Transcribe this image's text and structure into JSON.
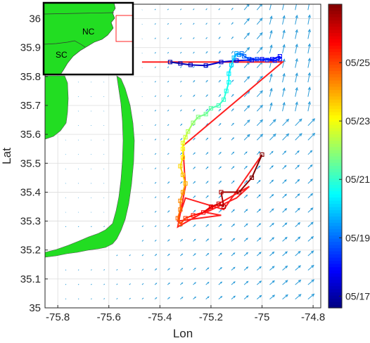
{
  "chart_data": [
    {
      "type": "scatter",
      "subtype": "map-with-quiver-and-track",
      "xlabel": "Lon",
      "ylabel": "Lat",
      "xlim": [
        -75.85,
        -74.77
      ],
      "ylim": [
        35.0,
        36.05
      ],
      "xticks": [
        -75.8,
        -75.6,
        -75.4,
        -75.2,
        -75.0,
        -74.8
      ],
      "xtick_labels": [
        "-75.8",
        "-75.6",
        "-75.4",
        "-75.2",
        "-75",
        "-74.8"
      ],
      "yticks": [
        35.0,
        35.1,
        35.2,
        35.3,
        35.4,
        35.5,
        35.6,
        35.7,
        35.8,
        35.9,
        36.0
      ],
      "ytick_labels": [
        "35",
        "35.1",
        "35.2",
        "35.3",
        "35.4",
        "35.5",
        "35.6",
        "35.7",
        "35.8",
        "35.9",
        "36"
      ],
      "grid": true,
      "land_color": "#22dd22",
      "arrow_color": "#2a9bd8",
      "colorbar": {
        "tick_labels": [
          "05/17",
          "05/19",
          "05/21",
          "05/23",
          "05/25"
        ],
        "tick_values": [
          17,
          19,
          21,
          23,
          25
        ],
        "range": [
          16.6,
          27.0
        ],
        "colormap": "jet"
      },
      "tracks": [
        {
          "color_value": 26.5,
          "points": [
            [
              -75.47,
              35.85
            ],
            [
              -74.92,
              35.85
            ],
            [
              -75.31,
              35.56
            ],
            [
              -75.3,
              35.42
            ],
            [
              -75.33,
              35.28
            ],
            [
              -75.05,
              35.42
            ],
            [
              -75.1,
              35.38
            ],
            [
              -75.22,
              35.33
            ],
            [
              -75.16,
              35.32
            ],
            [
              -75.33,
              35.3
            ],
            [
              -75.3,
              35.38
            ],
            [
              -75.15,
              35.34
            ],
            [
              -75.0,
              35.53
            ]
          ]
        }
      ],
      "series": [
        {
          "points": [
            [
              -75.36,
              35.85,
              17.0
            ],
            [
              -75.32,
              35.845,
              17.1
            ],
            [
              -75.28,
              35.84,
              17.2
            ],
            [
              -75.22,
              35.838,
              17.3
            ],
            [
              -75.16,
              35.85,
              17.4
            ],
            [
              -75.1,
              35.855,
              17.5
            ],
            [
              -75.04,
              35.857,
              17.7
            ],
            [
              -75.0,
              35.86,
              17.8
            ],
            [
              -74.96,
              35.86,
              17.9
            ],
            [
              -74.93,
              35.87,
              18.0
            ],
            [
              -74.93,
              35.86,
              18.1
            ],
            [
              -74.95,
              35.855,
              18.2
            ],
            [
              -74.98,
              35.857,
              18.4
            ],
            [
              -75.02,
              35.86,
              18.5
            ],
            [
              -75.05,
              35.86,
              18.7
            ],
            [
              -75.07,
              35.87,
              18.9
            ],
            [
              -75.08,
              35.88,
              19.1
            ],
            [
              -75.09,
              35.875,
              19.3
            ],
            [
              -75.1,
              35.88,
              19.6
            ],
            [
              -75.11,
              35.865,
              19.9
            ],
            [
              -75.12,
              35.84,
              20.2
            ],
            [
              -75.13,
              35.81,
              20.4
            ],
            [
              -75.13,
              35.78,
              20.6
            ],
            [
              -75.14,
              35.75,
              20.8
            ],
            [
              -75.15,
              35.72,
              21.0
            ],
            [
              -75.17,
              35.7,
              21.2
            ],
            [
              -75.2,
              35.69,
              21.4
            ],
            [
              -75.22,
              35.67,
              21.6
            ],
            [
              -75.25,
              35.66,
              21.8
            ],
            [
              -75.27,
              35.64,
              22.0
            ],
            [
              -75.29,
              35.61,
              22.3
            ],
            [
              -75.3,
              35.59,
              22.6
            ],
            [
              -75.31,
              35.57,
              22.9
            ],
            [
              -75.31,
              35.55,
              23.1
            ],
            [
              -75.31,
              35.52,
              23.3
            ],
            [
              -75.32,
              35.49,
              23.5
            ],
            [
              -75.31,
              35.46,
              23.7
            ],
            [
              -75.3,
              35.43,
              23.9
            ],
            [
              -75.31,
              35.4,
              24.1
            ],
            [
              -75.32,
              35.37,
              24.3
            ],
            [
              -75.32,
              35.34,
              24.5
            ],
            [
              -75.33,
              35.31,
              24.7
            ],
            [
              -75.32,
              35.29,
              24.9
            ],
            [
              -75.3,
              35.31,
              25.2
            ],
            [
              -75.27,
              35.32,
              25.5
            ],
            [
              -75.23,
              35.33,
              25.8
            ],
            [
              -75.2,
              35.35,
              26.0
            ],
            [
              -75.17,
              35.36,
              26.2
            ],
            [
              -75.15,
              35.35,
              26.4
            ],
            [
              -75.16,
              35.4,
              26.6
            ],
            [
              -75.09,
              35.4,
              26.8
            ],
            [
              -75.04,
              35.45,
              27.0
            ],
            [
              -75.0,
              35.53,
              27.0
            ]
          ]
        }
      ],
      "quiver_grid": {
        "lon_start": -75.77,
        "lon_step": 0.05,
        "lat_start": 35.03,
        "lat_step": 0.05
      }
    },
    {
      "type": "scatter",
      "subtype": "inset-map",
      "labels": [
        "NC",
        "SC"
      ],
      "land_color": "#22dd22"
    }
  ]
}
